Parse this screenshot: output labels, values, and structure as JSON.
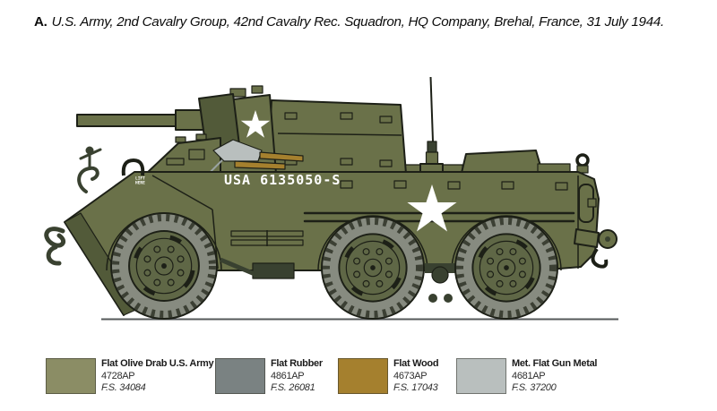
{
  "title": {
    "label_prefix": "A.",
    "text": "U.S. Army, 2nd Cavalry Group, 42nd Cavalry Rec. Squadron, HQ Company, Brehal, France, 31 July 1944."
  },
  "vehicle": {
    "registration": "USA 6135050-S",
    "stencil_line1": "LIFT",
    "stencil_line2": "HERE",
    "colors": {
      "body": "#6a7149",
      "body_dark": "#525a39",
      "body_deep": "#394130",
      "tire": "#878b80",
      "tread": "#3c4034",
      "rim": "#5f6746",
      "outline": "#1d2017",
      "star": "#ffffff",
      "wood": "#a5802e",
      "metal": "#b9bfbe",
      "wire": "#9aa3a3",
      "ground": "#55585a"
    }
  },
  "legend": {
    "items": [
      {
        "name": "Flat Olive Drab U.S. Army",
        "code": "4728AP",
        "fs": "F.S. 34084",
        "color": "#8b8d65"
      },
      {
        "name": "Flat Rubber",
        "code": "4861AP",
        "fs": "F.S. 26081",
        "color": "#7a8282"
      },
      {
        "name": "Flat Wood",
        "code": "4673AP",
        "fs": "F.S. 17043",
        "color": "#a5802e"
      },
      {
        "name": "Met. Flat Gun Metal",
        "code": "4681AP",
        "fs": "F.S. 37200",
        "color": "#b9bfbe"
      }
    ]
  }
}
